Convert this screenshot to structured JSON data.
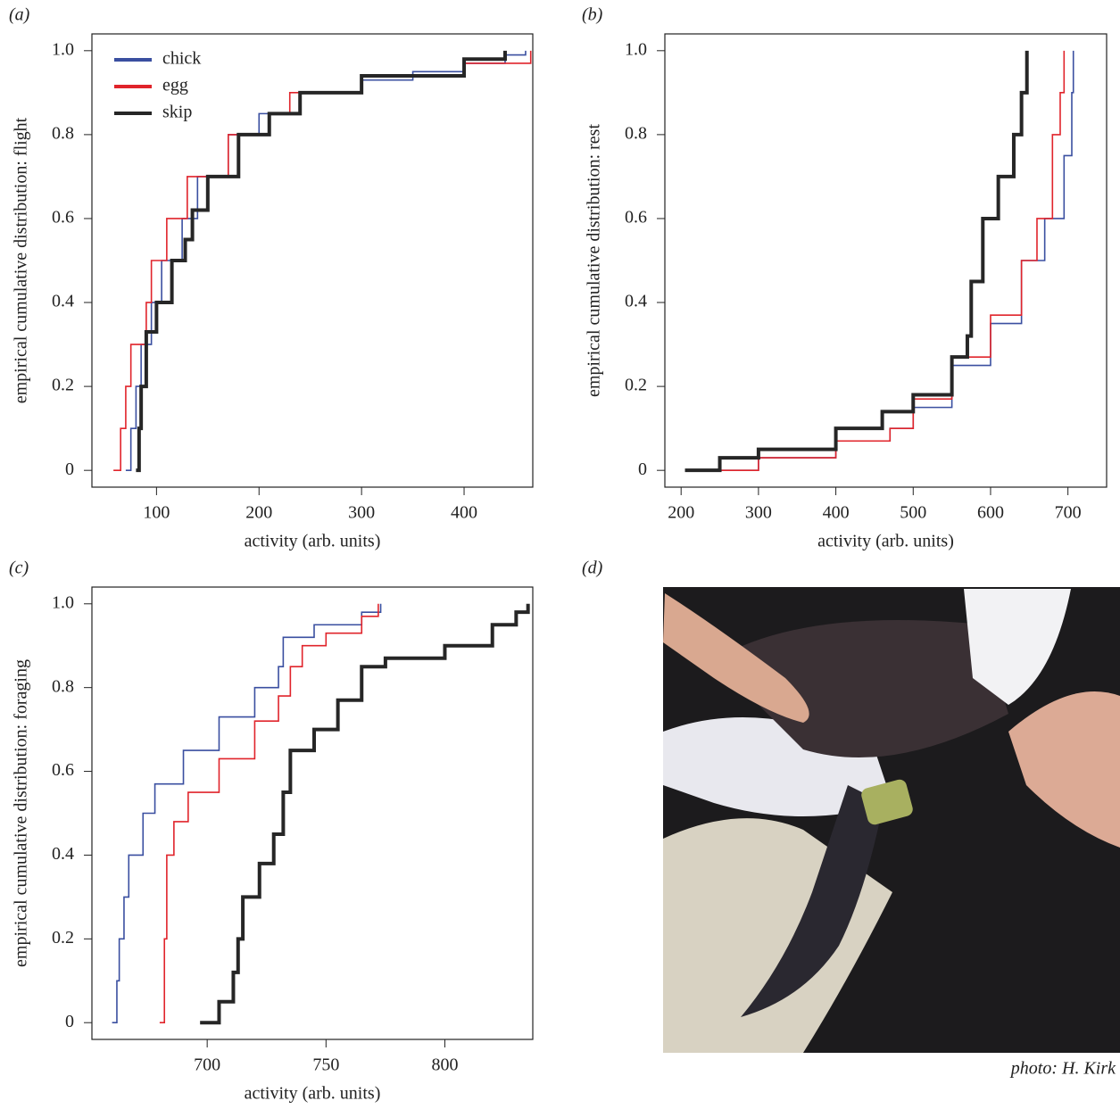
{
  "chart_data": [
    {
      "type": "line",
      "panel_label": "(a)",
      "xlabel": "activity (arb. units)",
      "ylabel": "empirical cumulative distribution: flight",
      "xlim": [
        37,
        467
      ],
      "ylim": [
        -0.04,
        1.04
      ],
      "xticks": [
        100,
        200,
        300,
        400
      ],
      "yticks": [
        0,
        0.2,
        0.4,
        0.6,
        0.8,
        {
          "value": 1,
          "label": "1.0"
        }
      ],
      "legend": "top-left",
      "series": [
        {
          "name": "chick",
          "color": "#3a4fa0",
          "linewidth": 1.6,
          "x": [
            70,
            75,
            80,
            85,
            95,
            105,
            125,
            140,
            170,
            200,
            240,
            300,
            350,
            400,
            440,
            460
          ],
          "values": [
            0,
            0.1,
            0.2,
            0.3,
            0.4,
            0.5,
            0.6,
            0.7,
            0.8,
            0.85,
            0.9,
            0.93,
            0.95,
            0.97,
            0.99,
            1.0
          ]
        },
        {
          "name": "egg",
          "color": "#e0242b",
          "linewidth": 1.6,
          "x": [
            58,
            65,
            70,
            75,
            90,
            95,
            110,
            130,
            170,
            210,
            230,
            300,
            400,
            465
          ],
          "values": [
            0,
            0.1,
            0.2,
            0.3,
            0.4,
            0.5,
            0.6,
            0.7,
            0.8,
            0.85,
            0.9,
            0.94,
            0.97,
            1.0
          ]
        },
        {
          "name": "skip",
          "color": "#262626",
          "linewidth": 4,
          "x": [
            80,
            83,
            85,
            90,
            100,
            115,
            128,
            135,
            150,
            180,
            210,
            240,
            300,
            400,
            440
          ],
          "values": [
            0,
            0.1,
            0.2,
            0.33,
            0.4,
            0.5,
            0.55,
            0.62,
            0.7,
            0.8,
            0.85,
            0.9,
            0.94,
            0.98,
            1.0
          ]
        }
      ]
    },
    {
      "type": "line",
      "panel_label": "(b)",
      "xlabel": "activity (arb. units)",
      "ylabel": "empirical cumulative distribution: rest",
      "xlim": [
        179,
        750
      ],
      "ylim": [
        -0.04,
        1.04
      ],
      "xticks": [
        200,
        300,
        400,
        500,
        600,
        700
      ],
      "yticks": [
        0,
        0.2,
        0.4,
        0.6,
        0.8,
        {
          "value": 1,
          "label": "1.0"
        }
      ],
      "series": [
        {
          "color": "#3a4fa0",
          "linewidth": 1.6,
          "x": [
            240,
            300,
            400,
            470,
            500,
            550,
            600,
            640,
            670,
            695,
            705,
            707
          ],
          "values": [
            0,
            0.03,
            0.07,
            0.1,
            0.15,
            0.25,
            0.35,
            0.5,
            0.6,
            0.75,
            0.9,
            1.0
          ]
        },
        {
          "color": "#e0242b",
          "linewidth": 1.6,
          "x": [
            240,
            300,
            400,
            470,
            500,
            550,
            600,
            640,
            660,
            680,
            690,
            695
          ],
          "values": [
            0,
            0.03,
            0.07,
            0.1,
            0.17,
            0.27,
            0.37,
            0.5,
            0.6,
            0.8,
            0.9,
            1.0
          ]
        },
        {
          "color": "#262626",
          "linewidth": 4,
          "x": [
            205,
            250,
            300,
            400,
            460,
            500,
            550,
            570,
            575,
            590,
            610,
            630,
            640,
            647
          ],
          "values": [
            0,
            0.03,
            0.05,
            0.1,
            0.14,
            0.18,
            0.27,
            0.32,
            0.45,
            0.6,
            0.7,
            0.8,
            0.9,
            1.0
          ]
        }
      ]
    },
    {
      "type": "line",
      "panel_label": "(c)",
      "xlabel": "activity (arb. units)",
      "ylabel": "empirical cumulative distribution: foraging",
      "xlim": [
        651.5,
        837
      ],
      "ylim": [
        -0.04,
        1.04
      ],
      "xticks": [
        700,
        750,
        800
      ],
      "yticks": [
        0,
        0.2,
        0.4,
        0.6,
        0.8,
        {
          "value": 1,
          "label": "1.0"
        }
      ],
      "series": [
        {
          "color": "#3a4fa0",
          "linewidth": 1.6,
          "x": [
            660,
            662,
            663,
            665,
            667,
            673,
            678,
            690,
            705,
            720,
            730,
            732,
            745,
            765,
            773
          ],
          "values": [
            0,
            0.1,
            0.2,
            0.3,
            0.4,
            0.5,
            0.57,
            0.65,
            0.73,
            0.8,
            0.85,
            0.92,
            0.95,
            0.98,
            1.0
          ]
        },
        {
          "color": "#e0242b",
          "linewidth": 1.6,
          "x": [
            680,
            682,
            683,
            686,
            692,
            705,
            720,
            730,
            735,
            740,
            750,
            765,
            772
          ],
          "values": [
            0,
            0.2,
            0.4,
            0.48,
            0.55,
            0.63,
            0.72,
            0.78,
            0.85,
            0.9,
            0.93,
            0.97,
            1.0
          ]
        },
        {
          "color": "#262626",
          "linewidth": 4,
          "x": [
            697,
            705,
            711,
            713,
            715,
            722,
            728,
            732,
            735,
            745,
            755,
            765,
            775,
            800,
            820,
            830,
            835
          ],
          "values": [
            0,
            0.05,
            0.12,
            0.2,
            0.3,
            0.38,
            0.45,
            0.55,
            0.65,
            0.7,
            0.77,
            0.85,
            0.87,
            0.9,
            0.95,
            0.98,
            1.0
          ]
        }
      ]
    }
  ],
  "photo_panel": {
    "panel_label": "(d)",
    "credit": "photo: H. Kirk"
  }
}
